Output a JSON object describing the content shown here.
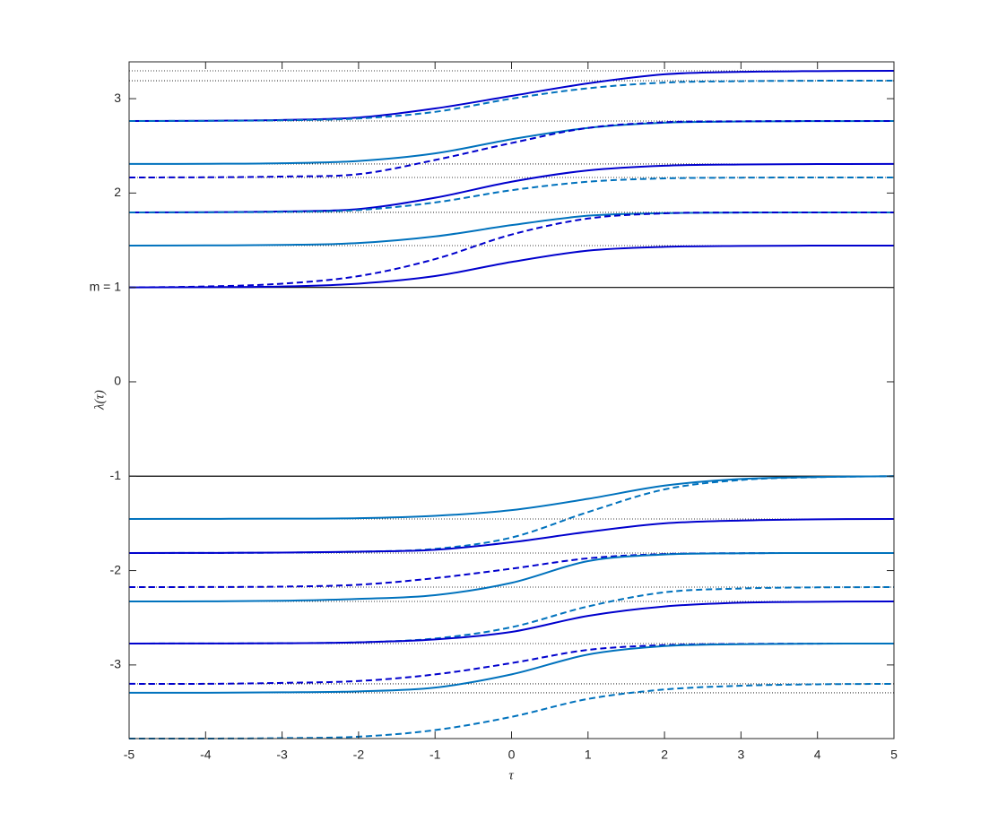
{
  "chart_data": {
    "type": "line",
    "xlabel": "τ",
    "ylabel": "λ(τ)",
    "xlim": [
      -5,
      5
    ],
    "ylim": [
      -3.78,
      3.39
    ],
    "xticks": [
      -5,
      -4,
      -3,
      -2,
      -1,
      0,
      1,
      2,
      3,
      4,
      5
    ],
    "yticks": [
      -3,
      -2,
      -1,
      0,
      {
        "value": 1,
        "label": "m = 1"
      },
      2,
      3
    ],
    "solid_lines": [
      1,
      -1
    ],
    "dotted_lines": [
      3.295,
      3.19,
      2.763,
      2.308,
      2.165,
      1.795,
      1.443,
      -1.453,
      -1.814,
      -2.175,
      -2.327,
      -2.773,
      -3.2,
      -3.295
    ],
    "x": [
      -5,
      -4,
      -3,
      -2,
      -1,
      0,
      1,
      2,
      3,
      4,
      5
    ],
    "series": [
      {
        "color": "#0000cd",
        "dash": "solid",
        "values": [
          2.763,
          2.766,
          2.774,
          2.8,
          2.896,
          3.029,
          3.162,
          3.258,
          3.284,
          3.292,
          3.295
        ]
      },
      {
        "color": "#0072bd",
        "dash": "dashed",
        "values": [
          2.763,
          2.765,
          2.77,
          2.79,
          2.86,
          3.0,
          3.11,
          3.17,
          3.185,
          3.19,
          3.19
        ]
      },
      {
        "color": "#0072bd",
        "dash": "solid",
        "values": [
          2.308,
          2.31,
          2.316,
          2.34,
          2.42,
          2.57,
          2.69,
          2.745,
          2.758,
          2.762,
          2.763
        ]
      },
      {
        "color": "#0000cd",
        "dash": "dashed",
        "values": [
          2.165,
          2.167,
          2.175,
          2.2,
          2.35,
          2.53,
          2.69,
          2.75,
          2.76,
          2.763,
          2.763
        ]
      },
      {
        "color": "#0000cd",
        "dash": "solid",
        "values": [
          1.795,
          1.797,
          1.805,
          1.83,
          1.95,
          2.12,
          2.24,
          2.29,
          2.303,
          2.307,
          2.308
        ]
      },
      {
        "color": "#0072bd",
        "dash": "dashed",
        "values": [
          1.795,
          1.796,
          1.8,
          1.82,
          1.9,
          2.03,
          2.12,
          2.155,
          2.163,
          2.165,
          2.165
        ]
      },
      {
        "color": "#0072bd",
        "dash": "solid",
        "values": [
          1.443,
          1.445,
          1.45,
          1.47,
          1.54,
          1.66,
          1.76,
          1.787,
          1.793,
          1.795,
          1.795
        ]
      },
      {
        "color": "#0000cd",
        "dash": "dashed",
        "values": [
          1.0,
          1.01,
          1.04,
          1.12,
          1.3,
          1.56,
          1.73,
          1.785,
          1.794,
          1.795,
          1.795
        ]
      },
      {
        "color": "#0000cd",
        "dash": "solid",
        "values": [
          1.0,
          1.003,
          1.01,
          1.04,
          1.12,
          1.27,
          1.39,
          1.43,
          1.44,
          1.443,
          1.443
        ]
      },
      {
        "color": "#0072bd",
        "dash": "solid",
        "values": [
          -1.453,
          -1.452,
          -1.45,
          -1.445,
          -1.42,
          -1.36,
          -1.24,
          -1.1,
          -1.03,
          -1.008,
          -1.0
        ]
      },
      {
        "color": "#0072bd",
        "dash": "dashed",
        "values": [
          -1.814,
          -1.813,
          -1.81,
          -1.8,
          -1.77,
          -1.65,
          -1.38,
          -1.14,
          -1.04,
          -1.01,
          -1.0
        ]
      },
      {
        "color": "#0000cd",
        "dash": "solid",
        "values": [
          -1.814,
          -1.813,
          -1.81,
          -1.8,
          -1.78,
          -1.7,
          -1.59,
          -1.5,
          -1.47,
          -1.457,
          -1.453
        ]
      },
      {
        "color": "#0000cd",
        "dash": "dashed",
        "values": [
          -2.175,
          -2.174,
          -2.17,
          -2.15,
          -2.08,
          -1.98,
          -1.87,
          -1.825,
          -1.816,
          -1.814,
          -1.814
        ]
      },
      {
        "color": "#0072bd",
        "dash": "solid",
        "values": [
          -2.327,
          -2.326,
          -2.32,
          -2.3,
          -2.26,
          -2.13,
          -1.9,
          -1.83,
          -1.816,
          -1.814,
          -1.814
        ]
      },
      {
        "color": "#0072bd",
        "dash": "dashed",
        "values": [
          -2.773,
          -2.772,
          -2.77,
          -2.76,
          -2.72,
          -2.6,
          -2.38,
          -2.23,
          -2.19,
          -2.178,
          -2.175
        ]
      },
      {
        "color": "#0000cd",
        "dash": "solid",
        "values": [
          -2.773,
          -2.772,
          -2.77,
          -2.76,
          -2.73,
          -2.65,
          -2.48,
          -2.38,
          -2.34,
          -2.33,
          -2.327
        ]
      },
      {
        "color": "#0000cd",
        "dash": "dashed",
        "values": [
          -3.2,
          -3.2,
          -3.19,
          -3.17,
          -3.1,
          -2.98,
          -2.84,
          -2.79,
          -2.777,
          -2.774,
          -2.773
        ]
      },
      {
        "color": "#0072bd",
        "dash": "solid",
        "values": [
          -3.295,
          -3.294,
          -3.29,
          -3.28,
          -3.24,
          -3.1,
          -2.89,
          -2.8,
          -2.78,
          -2.774,
          -2.773
        ]
      },
      {
        "color": "#0072bd",
        "dash": "dashed",
        "values": [
          -3.78,
          -3.78,
          -3.775,
          -3.76,
          -3.69,
          -3.55,
          -3.36,
          -3.26,
          -3.22,
          -3.205,
          -3.2
        ]
      }
    ]
  }
}
